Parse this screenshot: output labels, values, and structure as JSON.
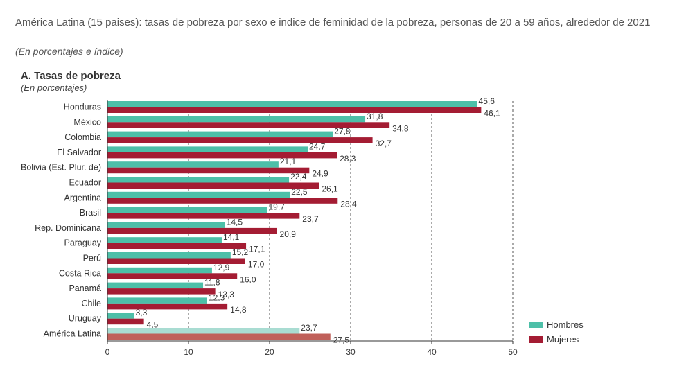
{
  "figure": {
    "title": "América Latina (15 paises): tasas de pobreza por sexo e indice de feminidad de la pobreza, personas de 20 a 59 años, alrededor de 2021",
    "subtitle": "(En porcentajes e índice)"
  },
  "panel": {
    "title": "A. Tasas  de pobreza",
    "subtitle": "(En porcentajes)"
  },
  "colors": {
    "hombres": "#4dbfa8",
    "mujeres": "#a41c33",
    "hombres_total": "#a9dcd2",
    "mujeres_total": "#c0605a"
  },
  "chart_data": {
    "type": "bar",
    "orientation": "horizontal",
    "categories": [
      "Honduras",
      "México",
      "Colombia",
      "El Salvador",
      "Bolivia  (Est. Plur. de)",
      "Ecuador",
      "Argentina",
      "Brasil",
      "Rep. Dominicana",
      "Paraguay",
      "Perú",
      "Costa Rica",
      "Panamá",
      "Chile",
      "Uruguay",
      "América Latina"
    ],
    "series": [
      {
        "name": "Hombres",
        "values": [
          45.6,
          31.8,
          27.8,
          24.7,
          21.1,
          22.4,
          22.5,
          19.7,
          14.5,
          14.1,
          15.2,
          12.9,
          11.8,
          12.3,
          3.3,
          23.7
        ]
      },
      {
        "name": "Mujeres",
        "values": [
          46.1,
          34.8,
          32.7,
          28.3,
          24.9,
          26.1,
          28.4,
          23.7,
          20.9,
          17.1,
          17.0,
          16.0,
          13.3,
          14.8,
          4.5,
          27.5
        ]
      }
    ],
    "labels": {
      "Hombres": [
        "45,6",
        "31,8",
        "27,8",
        "24,7",
        "21,1",
        "22,4",
        "22,5",
        "19,7",
        "14,5",
        "14,1",
        "15,2",
        "12,9",
        "11,8",
        "12,3",
        "3,3",
        "23,7"
      ],
      "Mujeres": [
        "46,1",
        "34,8",
        "32,7",
        "28,3",
        "24,9",
        "26,1",
        "28,4",
        "23,7",
        "20,9",
        "17,1",
        "17,0",
        "16,0",
        "13,3",
        "14,8",
        "4,5",
        "27,5"
      ]
    },
    "xlim": [
      0,
      50
    ],
    "xticks": [
      0,
      10,
      20,
      30,
      40,
      50
    ],
    "grid": "vertical dashed",
    "legend_position": "bottom-right"
  },
  "legend": {
    "hombres": "Hombres",
    "mujeres": "Mujeres"
  }
}
